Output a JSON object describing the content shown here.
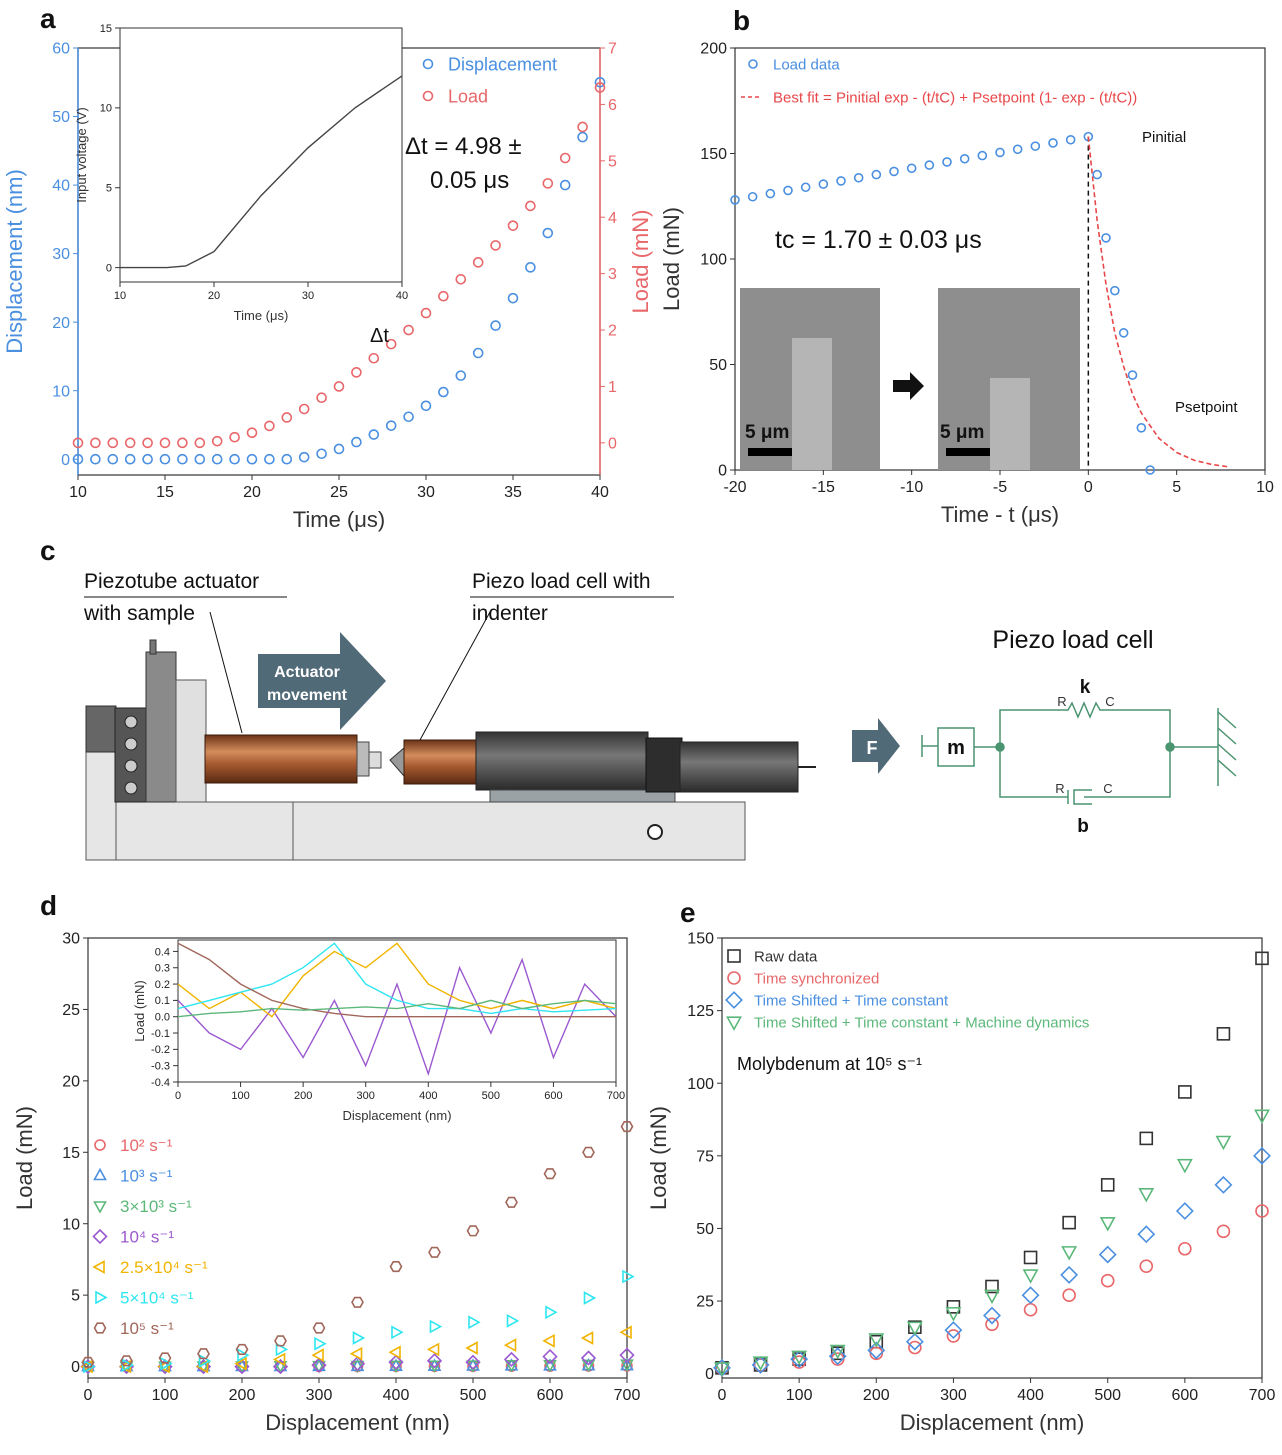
{
  "panel_labels": [
    "a",
    "b",
    "c",
    "d",
    "e"
  ],
  "diagram": {
    "actuator_label": [
      "Piezotube actuator",
      "with sample"
    ],
    "load_cell_label": [
      "Piezo load cell with",
      "indenter"
    ],
    "movement": [
      "Actuator",
      "movement"
    ],
    "model_title": "Piezo load cell",
    "force": "F",
    "mass": "m",
    "spring": "k",
    "damper": "b",
    "spring_r": "R",
    "spring_c": "C",
    "damper_r": "R",
    "damper_c": "C"
  },
  "chart_data": [
    {
      "type": "scatter",
      "xlabel": "Time (μs)",
      "ylabel": "Displacement (nm)",
      "y2label": "Load (mN)",
      "x": [
        10,
        11,
        12,
        13,
        14,
        15,
        16,
        17,
        18,
        19,
        20,
        21,
        22,
        23,
        24,
        25,
        26,
        27,
        28,
        29,
        30,
        31,
        32,
        33,
        34,
        35,
        36,
        37,
        38,
        39,
        40
      ],
      "xlim": [
        10,
        40
      ],
      "xticks": [
        10,
        15,
        20,
        25,
        30,
        35,
        40
      ],
      "ylim": [
        -2.3,
        60
      ],
      "yticks": [
        0,
        10,
        20,
        30,
        40,
        50,
        60
      ],
      "y2lim": [
        -0.57,
        7
      ],
      "y2ticks": [
        0,
        1,
        2,
        3,
        4,
        5,
        6,
        7
      ],
      "series": [
        {
          "name": "Displacement",
          "color": "#4a8fe0",
          "marker": "circle",
          "values": [
            0,
            0,
            0,
            0,
            0,
            0,
            0,
            0,
            0,
            0,
            0,
            0,
            0,
            0.3,
            0.8,
            1.5,
            2.5,
            3.6,
            4.9,
            6.2,
            7.8,
            9.8,
            12.2,
            15.5,
            19.5,
            23.5,
            28,
            33,
            40,
            47,
            55
          ]
        },
        {
          "name": "Load",
          "color": "#e8676a",
          "marker": "circle",
          "axis": "y2",
          "values": [
            0,
            0,
            0,
            0,
            0,
            0,
            0,
            0,
            0.03,
            0.1,
            0.18,
            0.3,
            0.45,
            0.6,
            0.8,
            1.0,
            1.25,
            1.5,
            1.75,
            2.0,
            2.3,
            2.6,
            2.9,
            3.2,
            3.5,
            3.85,
            4.2,
            4.6,
            5.05,
            5.6,
            6.3
          ]
        }
      ],
      "annotations": [
        "Δt = 4.98 ±",
        "0.05 μs",
        "Δt"
      ]
    },
    {
      "type": "line",
      "xlabel": "Time (μs)",
      "ylabel": "Input voltage (V)",
      "x": [
        10,
        15,
        17,
        20,
        25,
        30,
        35,
        40
      ],
      "xlim": [
        10,
        40
      ],
      "xticks": [
        10,
        20,
        30,
        40
      ],
      "ylim": [
        -0.9,
        15
      ],
      "yticks": [
        0,
        5,
        10,
        15
      ],
      "series": [
        {
          "color": "#444444",
          "values": [
            0,
            0,
            0.1,
            1,
            4.5,
            7.5,
            10,
            12
          ]
        }
      ]
    },
    {
      "type": "scatter",
      "xlabel": "Time - t (μs)",
      "ylabel": "Load (mN)",
      "xlim": [
        -20,
        10
      ],
      "xticks": [
        -20,
        -15,
        -10,
        -5,
        0,
        5,
        10
      ],
      "ylim": [
        0,
        200
      ],
      "yticks": [
        0,
        50,
        100,
        150,
        200
      ],
      "series": [
        {
          "name": "Load data",
          "color": "#4a8fe0",
          "marker": "circle",
          "x": [
            -20,
            -19,
            -18,
            -17,
            -16,
            -15,
            -14,
            -13,
            -12,
            -11,
            -10,
            -9,
            -8,
            -7,
            -6,
            -5,
            -4,
            -3,
            -2,
            -1,
            0,
            0.5,
            1,
            1.5,
            2,
            2.5,
            3,
            3.5
          ],
          "values": [
            128,
            129.5,
            131,
            132.5,
            134,
            135.5,
            137,
            138.5,
            140,
            141.5,
            143,
            144.5,
            146,
            147.5,
            149,
            150.5,
            152,
            153.5,
            155,
            156.5,
            158,
            140,
            110,
            85,
            65,
            45,
            20,
            0
          ]
        },
        {
          "name": "Best fit = Pinitial exp - (t/tC) + Psetpoint (1- exp - (t/tC))",
          "color": "#e8474a",
          "style": "dashed",
          "x": [
            0,
            0.5,
            1,
            1.5,
            2,
            2.5,
            3,
            4,
            5,
            6,
            7,
            8
          ],
          "values": [
            158,
            118,
            88,
            65,
            49,
            36,
            27,
            15,
            8.3,
            4.6,
            2.6,
            1.4
          ]
        }
      ],
      "annotations": [
        "tc = 1.70 ± 0.03 μs",
        "Pinitial",
        "Psetpoint",
        "5 μm",
        "5 μm"
      ]
    },
    {
      "type": "scatter",
      "xlabel": "Displacement (nm)",
      "ylabel": "Load (mN)",
      "x": [
        0,
        50,
        100,
        150,
        200,
        250,
        300,
        350,
        400,
        450,
        500,
        550,
        600,
        650,
        700
      ],
      "xlim": [
        0,
        700
      ],
      "xticks": [
        0,
        100,
        200,
        300,
        400,
        500,
        600,
        700
      ],
      "ylim": [
        -0.8,
        30
      ],
      "yticks": [
        0,
        5,
        10,
        15,
        20,
        25,
        30
      ],
      "series": [
        {
          "name": "10² s⁻¹",
          "color": "#e8676a",
          "marker": "circle",
          "values": [
            0,
            0,
            0,
            0,
            0,
            0,
            0.01,
            0.01,
            0.02,
            0.02,
            0.02,
            0.03,
            0.03,
            0.04,
            0.05
          ]
        },
        {
          "name": "10³ s⁻¹",
          "color": "#4a8fe0",
          "marker": "tri-up",
          "values": [
            0,
            0,
            0,
            0,
            0.01,
            0.01,
            0.02,
            0.02,
            0.03,
            0.03,
            0.04,
            0.05,
            0.05,
            0.06,
            0.07
          ]
        },
        {
          "name": "3×10³ s⁻¹",
          "color": "#5cb87a",
          "marker": "tri-down",
          "values": [
            0,
            0.01,
            0.02,
            0.03,
            0.04,
            0.05,
            0.06,
            0.07,
            0.08,
            0.09,
            0.1,
            0.12,
            0.13,
            0.15,
            0.17
          ]
        },
        {
          "name": "10⁴ s⁻¹",
          "color": "#9b59d0",
          "marker": "diamond",
          "values": [
            0,
            0,
            0,
            0,
            0,
            0,
            0.1,
            0.2,
            0.3,
            0.4,
            0.3,
            0.5,
            0.7,
            0.6,
            0.8
          ]
        },
        {
          "name": "2.5×10⁴ s⁻¹",
          "color": "#f0b400",
          "marker": "tri-left",
          "values": [
            0,
            0,
            0,
            0,
            0.2,
            0.5,
            0.8,
            0.9,
            1.0,
            1.2,
            1.3,
            1.5,
            1.8,
            2.0,
            2.4
          ]
        },
        {
          "name": "5×10⁴ s⁻¹",
          "color": "#2ee6f0",
          "marker": "tri-right",
          "values": [
            0,
            0.1,
            0.2,
            0.4,
            0.8,
            1.2,
            1.6,
            2.0,
            2.4,
            2.8,
            3.1,
            3.2,
            3.8,
            4.8,
            6.3
          ]
        },
        {
          "name": "10⁵ s⁻¹",
          "color": "#a0675a",
          "marker": "hexagon",
          "values": [
            0.3,
            0.4,
            0.6,
            0.9,
            1.2,
            1.8,
            2.7,
            4.5,
            7.0,
            8.0,
            9.5,
            11.5,
            13.5,
            15.0,
            16.8
          ]
        }
      ]
    },
    {
      "type": "line",
      "xlabel": "Displacement (nm)",
      "ylabel": "Load (mN)",
      "x": [
        0,
        50,
        100,
        150,
        200,
        250,
        300,
        350,
        400,
        450,
        500,
        550,
        600,
        650,
        700
      ],
      "xlim": [
        0,
        700
      ],
      "xticks": [
        0,
        100,
        200,
        300,
        400,
        500,
        600,
        700
      ],
      "ylim": [
        -0.4,
        0.47
      ],
      "yticks": [
        -0.4,
        -0.3,
        -0.2,
        -0.1,
        {
          "value": 0,
          "label": "0.0"
        },
        0.1,
        0.2,
        0.3,
        0.4
      ],
      "series": [
        {
          "color": "#9b59d0",
          "values": [
            0.1,
            -0.1,
            -0.2,
            0.05,
            -0.25,
            0.1,
            -0.3,
            0.2,
            -0.35,
            0.3,
            -0.1,
            0.35,
            -0.25,
            0.2,
            0.0
          ]
        },
        {
          "color": "#f0b400",
          "values": [
            0.2,
            0.05,
            0.15,
            0,
            0.25,
            0.4,
            0.3,
            0.45,
            0.2,
            0.1,
            0.05,
            0.1,
            0.05,
            0.1,
            0.05
          ]
        },
        {
          "color": "#2ee6f0",
          "values": [
            0.05,
            0.1,
            0.15,
            0.2,
            0.3,
            0.45,
            0.2,
            0.1,
            0.05,
            0.05,
            0.02,
            0.05,
            0.03,
            0.04,
            0.05
          ]
        },
        {
          "color": "#a0675a",
          "values": [
            0.45,
            0.35,
            0.2,
            0.1,
            0.05,
            0.02,
            0,
            0,
            0,
            0,
            0,
            0,
            0,
            0,
            0
          ]
        },
        {
          "color": "#5cb87a",
          "values": [
            0,
            0.02,
            0.03,
            0.05,
            0.04,
            0.05,
            0.06,
            0.05,
            0.08,
            0.05,
            0.1,
            0.05,
            0.08,
            0.1,
            0.08
          ]
        }
      ]
    },
    {
      "type": "scatter",
      "xlabel": "Displacement (nm)",
      "ylabel": "Load (mN)",
      "x": [
        0,
        50,
        100,
        150,
        200,
        250,
        300,
        350,
        400,
        450,
        500,
        550,
        600,
        650,
        700
      ],
      "xlim": [
        0,
        700
      ],
      "xticks": [
        0,
        100,
        200,
        300,
        400,
        500,
        600,
        700
      ],
      "ylim": [
        -1.5,
        150
      ],
      "yticks": [
        0,
        25,
        50,
        75,
        100,
        125,
        150
      ],
      "series": [
        {
          "name": "Raw data",
          "color": "#333333",
          "marker": "square",
          "values": [
            2,
            3,
            5,
            7,
            11,
            16,
            23,
            30,
            40,
            52,
            65,
            81,
            97,
            117,
            143
          ]
        },
        {
          "name": "Time synchronized",
          "color": "#e8676a",
          "marker": "circle",
          "values": [
            2,
            3,
            4,
            5,
            7,
            9,
            13,
            17,
            22,
            27,
            32,
            37,
            43,
            49,
            56
          ]
        },
        {
          "name": "Time Shifted + Time constant",
          "color": "#4a8fe0",
          "marker": "diamond",
          "values": [
            2,
            3,
            5,
            6,
            8,
            11,
            15,
            20,
            27,
            34,
            41,
            48,
            56,
            65,
            75
          ]
        },
        {
          "name": "Time Shifted + Time constant + Machine dynamics",
          "color": "#5cb87a",
          "marker": "tri-down",
          "values": [
            2,
            4,
            6,
            8,
            12,
            16,
            21,
            27,
            34,
            42,
            52,
            62,
            72,
            80,
            89
          ]
        }
      ],
      "annotations": [
        "Molybdenum at 10⁵ s⁻¹"
      ]
    }
  ]
}
